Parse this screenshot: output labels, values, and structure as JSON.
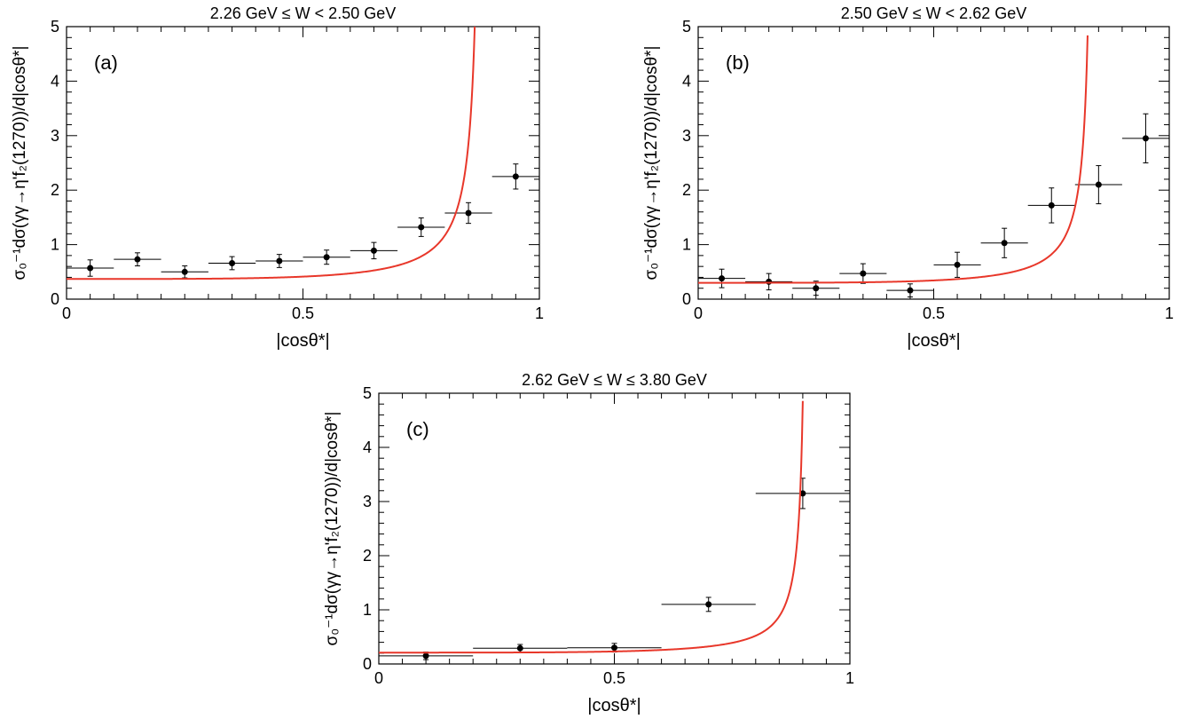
{
  "chart_data": [
    {
      "type": "scatter",
      "panel": "(a)",
      "title": "2.26 GeV ≤ W < 2.50 GeV",
      "xlabel": "|cosθ*|",
      "ylabel": "σ₀⁻¹dσ(γγ→η'f₂(1270))/d|cosθ*|",
      "xlim": [
        0,
        1
      ],
      "ylim": [
        0,
        5
      ],
      "xticks": [
        "0",
        "0.5",
        "1"
      ],
      "yticks": [
        "0",
        "1",
        "2",
        "3",
        "4",
        "5"
      ],
      "grid": false,
      "series": [
        {
          "kind": "points-with-errors",
          "x": [
            0.05,
            0.15,
            0.25,
            0.35,
            0.45,
            0.55,
            0.65,
            0.75,
            0.85,
            0.95
          ],
          "xerr": [
            0.05,
            0.05,
            0.05,
            0.05,
            0.05,
            0.05,
            0.05,
            0.05,
            0.05,
            0.05
          ],
          "y": [
            0.57,
            0.73,
            0.5,
            0.66,
            0.7,
            0.77,
            0.89,
            1.32,
            1.58,
            2.25
          ],
          "yerr": [
            0.15,
            0.12,
            0.11,
            0.12,
            0.12,
            0.13,
            0.15,
            0.17,
            0.19,
            0.23
          ],
          "color": "#000000"
        },
        {
          "kind": "curve",
          "color": "#e8372a",
          "a": 0.37,
          "c": 0.88
        }
      ]
    },
    {
      "type": "scatter",
      "panel": "(b)",
      "title": "2.50 GeV ≤ W < 2.62 GeV",
      "xlabel": "|cosθ*|",
      "ylabel": "σ₀⁻¹dσ(γγ→η'f₂(1270))/d|cosθ*|",
      "xlim": [
        0,
        1
      ],
      "ylim": [
        0,
        5
      ],
      "xticks": [
        "0",
        "0.5",
        "1"
      ],
      "yticks": [
        "0",
        "1",
        "2",
        "3",
        "4",
        "5"
      ],
      "grid": false,
      "series": [
        {
          "kind": "points-with-errors",
          "x": [
            0.05,
            0.15,
            0.25,
            0.35,
            0.45,
            0.55,
            0.65,
            0.75,
            0.85,
            0.95
          ],
          "xerr": [
            0.05,
            0.05,
            0.05,
            0.05,
            0.05,
            0.05,
            0.05,
            0.05,
            0.05,
            0.05
          ],
          "y": [
            0.38,
            0.32,
            0.2,
            0.47,
            0.16,
            0.63,
            1.03,
            1.72,
            2.1,
            2.95
          ],
          "yerr": [
            0.17,
            0.15,
            0.13,
            0.18,
            0.12,
            0.23,
            0.27,
            0.32,
            0.35,
            0.45
          ],
          "color": "#000000"
        },
        {
          "kind": "curve",
          "color": "#e8372a",
          "a": 0.3,
          "c": 0.84
        }
      ]
    },
    {
      "type": "scatter",
      "panel": "(c)",
      "title": "2.62 GeV ≤ W ≤ 3.80 GeV",
      "xlabel": "|cosθ*|",
      "ylabel": "σ₀⁻¹dσ(γγ→η'f₂(1270))/d|cosθ*|",
      "xlim": [
        0,
        1
      ],
      "ylim": [
        0,
        5
      ],
      "xticks": [
        "0",
        "0.5",
        "1"
      ],
      "yticks": [
        "0",
        "1",
        "2",
        "3",
        "4",
        "5"
      ],
      "grid": false,
      "series": [
        {
          "kind": "points-with-errors",
          "x": [
            0.1,
            0.3,
            0.5,
            0.7,
            0.9
          ],
          "xerr": [
            0.1,
            0.1,
            0.1,
            0.1,
            0.1
          ],
          "y": [
            0.15,
            0.29,
            0.3,
            1.1,
            3.15
          ],
          "yerr": [
            0.07,
            0.07,
            0.08,
            0.13,
            0.28
          ],
          "color": "#000000"
        },
        {
          "kind": "curve",
          "color": "#e8372a",
          "a": 0.21,
          "c": 0.91
        }
      ]
    }
  ]
}
